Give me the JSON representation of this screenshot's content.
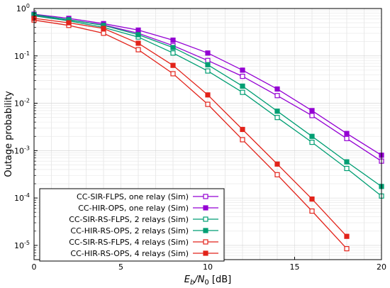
{
  "chart_data": {
    "type": "line",
    "xlabel": {
      "main": "E",
      "sub1": "b",
      "mid": "/N",
      "sub2": "0",
      "unit": " [dB]"
    },
    "ylabel": "Outage probability",
    "xlim": [
      0,
      20
    ],
    "ylim": [
      5e-06,
      1
    ],
    "yscale": "log",
    "grid": true,
    "legend_position": "bottom-left",
    "x_ticks": [
      "0",
      "5",
      "10",
      "15",
      "20"
    ],
    "y_ticks": [
      {
        "base": "10",
        "exp": "0"
      },
      {
        "base": "10",
        "exp": "-1"
      },
      {
        "base": "10",
        "exp": "-2"
      },
      {
        "base": "10",
        "exp": "-3"
      },
      {
        "base": "10",
        "exp": "-4"
      },
      {
        "base": "10",
        "exp": "-5"
      }
    ],
    "series": [
      {
        "name": "CC-SIR-FLPS, one relay (Sim)",
        "color": "#9400d3",
        "marker": "open-square",
        "x": [
          0,
          2,
          4,
          6,
          8,
          10,
          12,
          14,
          16,
          18,
          20
        ],
        "y": [
          0.72,
          0.58,
          0.45,
          0.3,
          0.165,
          0.08,
          0.037,
          0.0145,
          0.0055,
          0.0018,
          0.0006
        ]
      },
      {
        "name": "CC-HIR-OPS, one relay (Sim)",
        "color": "#9400d3",
        "marker": "filled-square",
        "x": [
          0,
          2,
          4,
          6,
          8,
          10,
          12,
          14,
          16,
          18,
          20
        ],
        "y": [
          0.76,
          0.62,
          0.48,
          0.35,
          0.215,
          0.115,
          0.05,
          0.02,
          0.007,
          0.0023,
          0.0008
        ]
      },
      {
        "name": "CC-SIR-RS-FLPS, 2 relays (Sim)",
        "color": "#009e73",
        "marker": "open-square",
        "x": [
          0,
          2,
          4,
          6,
          8,
          10,
          12,
          14,
          16,
          18,
          20
        ],
        "y": [
          0.7,
          0.55,
          0.4,
          0.25,
          0.115,
          0.048,
          0.017,
          0.005,
          0.0015,
          0.00042,
          0.00011
        ]
      },
      {
        "name": "CC-HIR-RS-OPS, 2 relays (Sim)",
        "color": "#009e73",
        "marker": "filled-square",
        "x": [
          0,
          2,
          4,
          6,
          8,
          10,
          12,
          14,
          16,
          18,
          20
        ],
        "y": [
          0.74,
          0.58,
          0.44,
          0.28,
          0.15,
          0.065,
          0.023,
          0.0068,
          0.002,
          0.00058,
          0.000175
        ]
      },
      {
        "name": "CC-SIR-RS-FLPS, 4 relays (Sim)",
        "color": "#e2231a",
        "marker": "open-square",
        "x": [
          0,
          2,
          4,
          6,
          8,
          10,
          12,
          14,
          16,
          18
        ],
        "y": [
          0.57,
          0.44,
          0.3,
          0.135,
          0.042,
          0.0095,
          0.0017,
          0.00031,
          5.3e-05,
          8.5e-06
        ]
      },
      {
        "name": "CC-HIR-RS-OPS, 4 relays (Sim)",
        "color": "#e2231a",
        "marker": "filled-square",
        "x": [
          0,
          2,
          4,
          6,
          8,
          10,
          12,
          14,
          16,
          18
        ],
        "y": [
          0.62,
          0.5,
          0.38,
          0.185,
          0.063,
          0.015,
          0.0028,
          0.00052,
          9.5e-05,
          1.55e-05
        ]
      }
    ]
  }
}
